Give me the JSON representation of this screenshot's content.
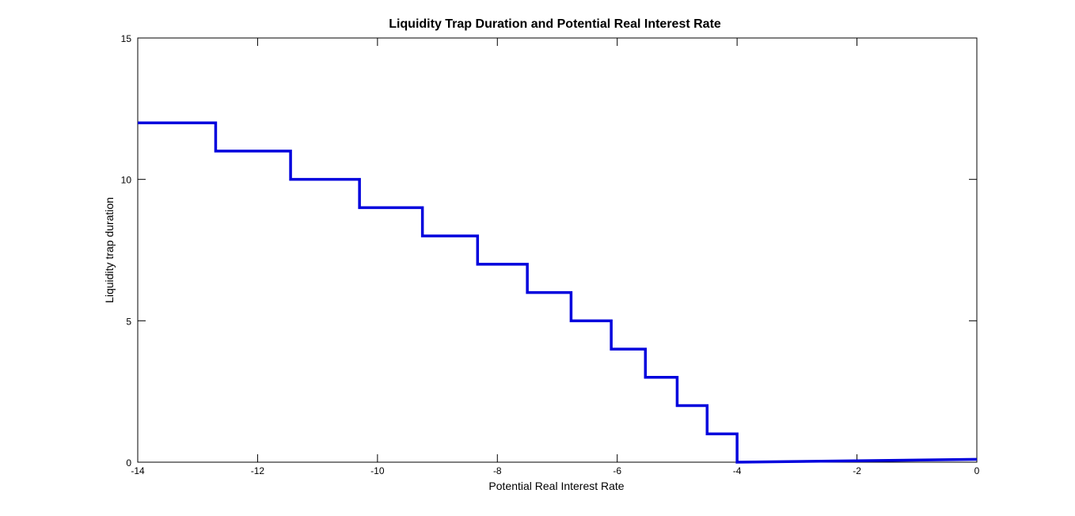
{
  "chart_data": {
    "type": "line",
    "title": "Liquidity Trap Duration and Potential Real Interest Rate",
    "xlabel": "Potential Real Interest Rate",
    "ylabel": "Liquidity trap duration",
    "xlim": [
      -14,
      0
    ],
    "ylim": [
      0,
      15
    ],
    "xticks": [
      "-14",
      "-12",
      "-10",
      "-8",
      "-6",
      "-4",
      "-2",
      "0"
    ],
    "yticks": [
      "0",
      "5",
      "10",
      "15"
    ],
    "grid": false,
    "legend": "none",
    "series": [
      {
        "color": "#0000dd",
        "x": [
          -14,
          -12.7,
          -12.7,
          -11.45,
          -11.45,
          -10.3,
          -10.3,
          -9.25,
          -9.25,
          -8.33,
          -8.33,
          -7.5,
          -7.5,
          -6.77,
          -6.77,
          -6.1,
          -6.1,
          -5.53,
          -5.53,
          -5.0,
          -5.0,
          -4.5,
          -4.5,
          -4.0,
          -4.0,
          0
        ],
        "y": [
          12,
          12,
          11,
          11,
          10,
          10,
          9,
          9,
          8,
          8,
          7,
          7,
          6,
          6,
          5,
          5,
          4,
          4,
          3,
          3,
          2,
          2,
          1,
          1,
          0,
          0.1
        ]
      }
    ]
  }
}
